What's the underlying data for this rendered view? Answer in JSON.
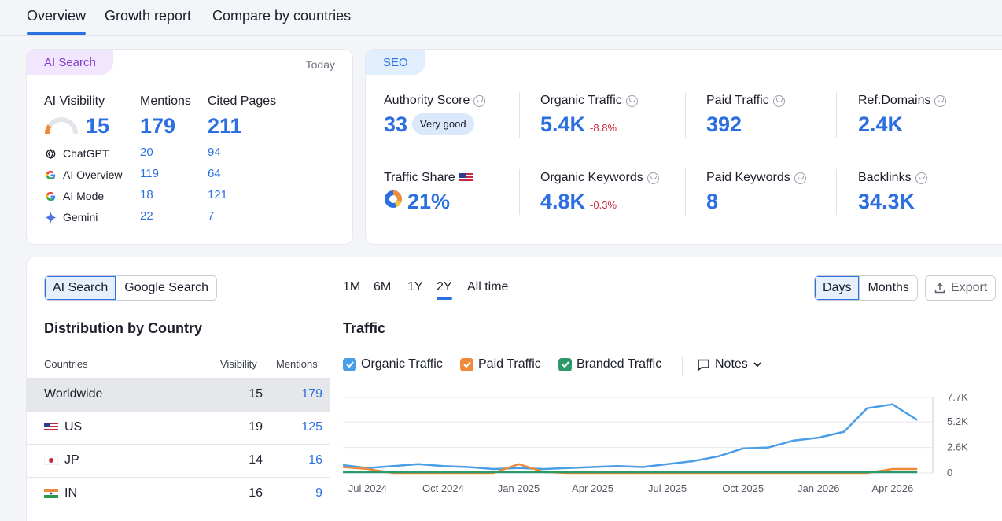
{
  "tabs": [
    "Overview",
    "Growth report",
    "Compare by countries"
  ],
  "ai_search": {
    "label": "AI Search",
    "date": "Today",
    "headers": {
      "visibility": "AI Visibility",
      "mentions": "Mentions",
      "cited": "Cited Pages"
    },
    "visibility": "15",
    "mentions": "179",
    "cited": "211",
    "rows": [
      {
        "name": "ChatGPT",
        "icon": "chatgpt-icon",
        "mentions": "20",
        "cited": "94"
      },
      {
        "name": "AI Overview",
        "icon": "google-icon",
        "mentions": "119",
        "cited": "64"
      },
      {
        "name": "AI Mode",
        "icon": "google-icon",
        "mentions": "18",
        "cited": "121"
      },
      {
        "name": "Gemini",
        "icon": "gemini-icon",
        "mentions": "22",
        "cited": "7"
      }
    ]
  },
  "seo": {
    "label": "SEO",
    "authority": {
      "label": "Authority Score",
      "value": "33",
      "badge": "Very good"
    },
    "organic_traffic": {
      "label": "Organic Traffic",
      "value": "5.4K",
      "change": "-8.8%"
    },
    "paid_traffic": {
      "label": "Paid Traffic",
      "value": "392"
    },
    "ref_domains": {
      "label": "Ref.Domains",
      "value": "2.4K"
    },
    "traffic_share": {
      "label": "Traffic Share",
      "value": "21%"
    },
    "organic_keywords": {
      "label": "Organic Keywords",
      "value": "4.8K",
      "change": "-0.3%"
    },
    "paid_keywords": {
      "label": "Paid Keywords",
      "value": "8"
    },
    "backlinks": {
      "label": "Backlinks",
      "value": "34.3K"
    }
  },
  "distribution": {
    "toggle": [
      "AI Search",
      "Google Search"
    ],
    "title": "Distribution by Country",
    "columns": [
      "Countries",
      "Visibility",
      "Mentions"
    ],
    "rows": [
      {
        "country": "Worldwide",
        "visibility": "15",
        "mentions": "179"
      },
      {
        "country": "US",
        "visibility": "19",
        "mentions": "125"
      },
      {
        "country": "JP",
        "visibility": "14",
        "mentions": "16"
      },
      {
        "country": "IN",
        "visibility": "16",
        "mentions": "9"
      }
    ]
  },
  "traffic": {
    "ranges": [
      "1M",
      "6M",
      "1Y",
      "2Y",
      "All time"
    ],
    "selected_range": "2Y",
    "granularity": [
      "Days",
      "Months"
    ],
    "export": "Export",
    "title": "Traffic",
    "legend": [
      {
        "label": "Organic Traffic",
        "color": "#4a9ee8"
      },
      {
        "label": "Paid Traffic",
        "color": "#ef8a3c"
      },
      {
        "label": "Branded Traffic",
        "color": "#2a9a6a"
      }
    ],
    "notes": "Notes"
  },
  "chart_data": {
    "type": "line",
    "x_ticks": [
      "Jul 2024",
      "Oct 2024",
      "Jan 2025",
      "Apr 2025",
      "Jul 2025",
      "Oct 2025",
      "Jan 2026",
      "Apr 2026"
    ],
    "y_ticks": [
      "7.7K",
      "5.2K",
      "2.6K",
      "0"
    ],
    "ylim": [
      0,
      7700
    ],
    "series": [
      {
        "name": "Organic Traffic",
        "color": "#4a9ee8",
        "points": [
          [
            "2024-06",
            800
          ],
          [
            "2024-07",
            500
          ],
          [
            "2024-08",
            700
          ],
          [
            "2024-09",
            900
          ],
          [
            "2024-10",
            700
          ],
          [
            "2024-11",
            600
          ],
          [
            "2024-12",
            400
          ],
          [
            "2025-01",
            500
          ],
          [
            "2025-02",
            400
          ],
          [
            "2025-03",
            500
          ],
          [
            "2025-04",
            600
          ],
          [
            "2025-05",
            700
          ],
          [
            "2025-06",
            600
          ],
          [
            "2025-07",
            900
          ],
          [
            "2025-08",
            1200
          ],
          [
            "2025-09",
            1700
          ],
          [
            "2025-10",
            2500
          ],
          [
            "2025-11",
            2600
          ],
          [
            "2025-12",
            3300
          ],
          [
            "2026-01",
            3600
          ],
          [
            "2026-02",
            4200
          ],
          [
            "2026-03",
            6600
          ],
          [
            "2026-04",
            7000
          ],
          [
            "2026-05",
            5400
          ]
        ]
      },
      {
        "name": "Paid Traffic",
        "color": "#ef8a3c",
        "points": [
          [
            "2024-06",
            600
          ],
          [
            "2024-07",
            400
          ],
          [
            "2024-08",
            0
          ],
          [
            "2024-12",
            0
          ],
          [
            "2025-01",
            900
          ],
          [
            "2025-02",
            100
          ],
          [
            "2025-03",
            0
          ],
          [
            "2026-03",
            0
          ],
          [
            "2026-04",
            400
          ],
          [
            "2026-05",
            400
          ]
        ]
      },
      {
        "name": "Branded Traffic",
        "color": "#2a9a6a",
        "points": [
          [
            "2024-06",
            100
          ],
          [
            "2026-05",
            100
          ]
        ]
      }
    ]
  }
}
